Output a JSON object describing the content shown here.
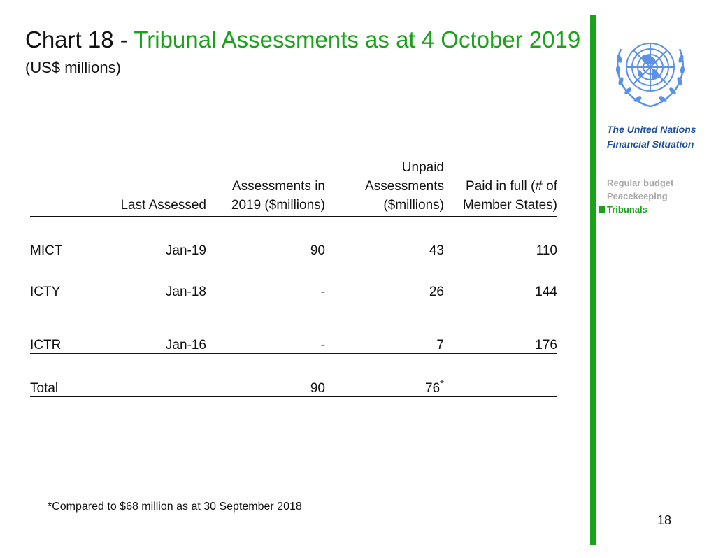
{
  "header": {
    "prefix": "Chart 18 - ",
    "title": "Tribunal Assessments as at 4 October 2019",
    "subtitle": "(US$ millions)"
  },
  "sidebar": {
    "heading_line1": "The United Nations",
    "heading_line2": "Financial Situation",
    "items": [
      {
        "label": "Regular budget",
        "active": false
      },
      {
        "label": "Peacekeeping",
        "active": false
      },
      {
        "label": "Tribunals",
        "active": true
      }
    ]
  },
  "colors": {
    "accent": "#1aa31a",
    "heading": "#1f4e9a",
    "inactive": "#a8a8a8"
  },
  "table": {
    "headers": [
      "",
      "Last Assessed",
      "Assessments in 2019 ($millions)",
      "Unpaid Assessments ($millions)",
      "Paid in full  (# of Member States)"
    ],
    "rows": [
      {
        "name": "MICT",
        "last_assessed": "Jan-19",
        "assessments": "90",
        "unpaid": "43",
        "paid_full": "110"
      },
      {
        "name": "ICTY",
        "last_assessed": "Jan-18",
        "assessments": "-",
        "unpaid": "26",
        "paid_full": "144"
      },
      {
        "name": "ICTR",
        "last_assessed": "Jan-16",
        "assessments": "-",
        "unpaid": "7",
        "paid_full": "176"
      }
    ],
    "total": {
      "label": "Total",
      "assessments": "90",
      "unpaid": "76",
      "unpaid_mark": "*"
    }
  },
  "footnote": "*Compared to $68 million as at 30 September 2018",
  "page_number": "18"
}
